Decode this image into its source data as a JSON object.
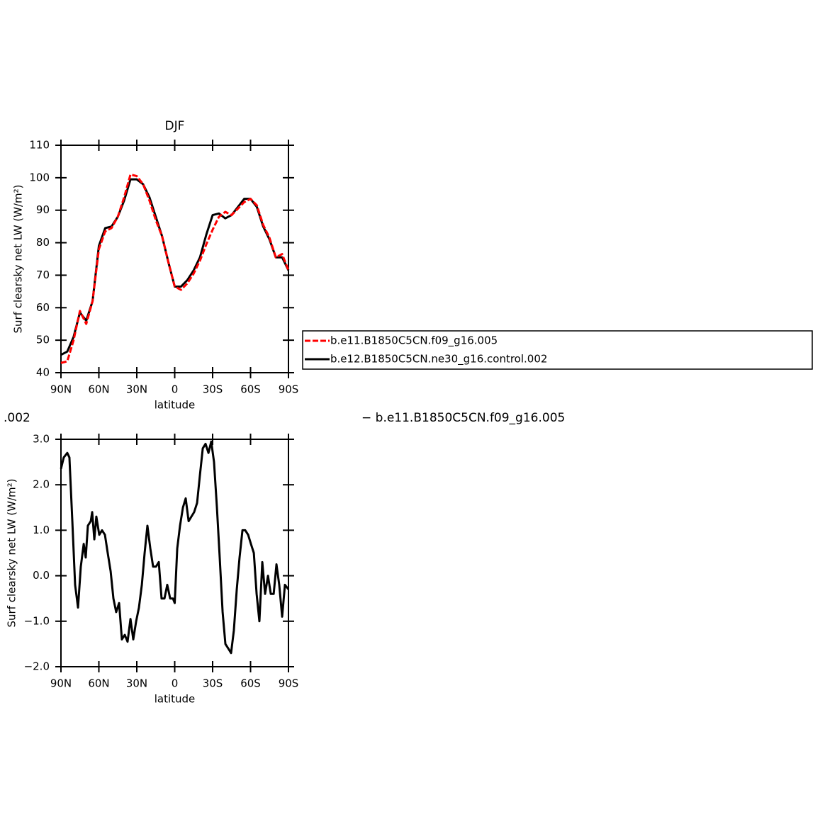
{
  "chart_data": [
    {
      "type": "line",
      "title": "DJF",
      "x_label": "latitude",
      "y_label": "Surf clearsky net LW (W/m²)",
      "x": [
        90,
        85,
        80,
        75,
        70,
        65,
        60,
        55,
        50,
        45,
        40,
        35,
        30,
        25,
        20,
        15,
        10,
        5,
        0,
        -5,
        -10,
        -15,
        -20,
        -25,
        -30,
        -35,
        -40,
        -45,
        -50,
        -55,
        -60,
        -65,
        -70,
        -75,
        -80,
        -85,
        -90
      ],
      "series": [
        {
          "name": "b.e11.B1850C5CN.f09_g16.005",
          "color": "#ff0000",
          "dashed": true,
          "values": [
            43,
            43.5,
            50,
            59,
            55,
            62,
            78,
            83.5,
            84.5,
            88,
            94,
            101,
            100.5,
            98,
            93,
            87,
            82,
            74,
            66.5,
            65.5,
            67.5,
            70.5,
            74.5,
            79.5,
            84,
            88,
            89.5,
            88.5,
            90.5,
            92.5,
            93.5,
            91.5,
            85.5,
            81.5,
            75.5,
            76.5,
            71.5
          ]
        },
        {
          "name": "b.e12.B1850C5CN.ne30_g16.control.002",
          "color": "#000000",
          "dashed": false,
          "values": [
            45.5,
            46.5,
            51,
            58.5,
            56,
            62,
            79,
            84.5,
            85,
            88,
            93,
            99.5,
            99.5,
            98,
            94,
            88,
            82,
            74,
            66.5,
            66.5,
            68.5,
            71.5,
            75.5,
            82.5,
            88.5,
            89,
            87.5,
            88.5,
            91,
            93.5,
            93.5,
            91,
            85,
            81,
            75.5,
            75.5,
            71.5
          ]
        }
      ],
      "xlim": [
        90,
        -90
      ],
      "xticks": [
        {
          "value": 90,
          "label": "90N"
        },
        {
          "value": 60,
          "label": "60N"
        },
        {
          "value": 30,
          "label": "30N"
        },
        0,
        {
          "value": -30,
          "label": "30S"
        },
        {
          "value": -60,
          "label": "60S"
        },
        {
          "value": -90,
          "label": "90S"
        }
      ],
      "ylim": [
        40,
        110
      ],
      "yticks": [
        40,
        50,
        60,
        70,
        80,
        90,
        100,
        110
      ],
      "legend": "right"
    },
    {
      "type": "line",
      "title_fragments": [
        ".002",
        "− b.e11.B1850C5CN.f09_g16.005"
      ],
      "x_label": "latitude",
      "y_label": "Surf clearsky net LW (W/m²)",
      "x": [
        90,
        87.8,
        85,
        83.3,
        81,
        78.8,
        76.5,
        74.3,
        72,
        70.4,
        68.7,
        66.4,
        65.3,
        63.6,
        62,
        59.7,
        57.5,
        55.2,
        53,
        50.7,
        48.5,
        46.3,
        44,
        41.8,
        39.5,
        37.3,
        35,
        32.8,
        30.5,
        28.3,
        26,
        23.8,
        21.6,
        19.3,
        17.1,
        14.8,
        12.6,
        10.4,
        8.1,
        5.9,
        3.6,
        1.4,
        0,
        -2,
        -4.2,
        -6.5,
        -8.7,
        -11,
        -13.2,
        -15.4,
        -17.7,
        -19.9,
        -22.2,
        -24.4,
        -26.7,
        -28.9,
        -31.1,
        -33.4,
        -35.6,
        -37.9,
        -40.1,
        -42.4,
        -44.6,
        -46.8,
        -49.1,
        -51.3,
        -53.6,
        -55.8,
        -58.1,
        -60.3,
        -62.6,
        -64.8,
        -67,
        -69.3,
        -71.5,
        -73.8,
        -76,
        -78.3,
        -80.5,
        -82.7,
        -85,
        -87.2,
        -90
      ],
      "series": [
        {
          "color": "#000000",
          "dashed": false,
          "values": [
            2.35,
            2.6,
            2.7,
            2.6,
            1.2,
            -0.2,
            -0.7,
            0.2,
            0.7,
            0.4,
            1.1,
            1.2,
            1.4,
            0.8,
            1.3,
            0.9,
            1.0,
            0.9,
            0.5,
            0.1,
            -0.5,
            -0.8,
            -0.6,
            -1.4,
            -1.3,
            -1.45,
            -0.95,
            -1.4,
            -1.0,
            -0.7,
            -0.2,
            0.5,
            1.1,
            0.6,
            0.2,
            0.2,
            0.3,
            -0.5,
            -0.5,
            -0.2,
            -0.5,
            -0.5,
            -0.6,
            0.6,
            1.1,
            1.5,
            1.7,
            1.2,
            1.3,
            1.4,
            1.6,
            2.2,
            2.8,
            2.9,
            2.7,
            2.95,
            2.5,
            1.5,
            0.4,
            -0.8,
            -1.5,
            -1.6,
            -1.7,
            -1.2,
            -0.3,
            0.4,
            1.0,
            1.0,
            0.9,
            0.7,
            0.5,
            -0.4,
            -1.0,
            0.3,
            -0.4,
            0.0,
            -0.4,
            -0.4,
            0.25,
            -0.2,
            -0.9,
            -0.2,
            -0.3
          ]
        }
      ],
      "xlim": [
        90,
        -90
      ],
      "xticks": [
        {
          "value": 90,
          "label": "90N"
        },
        {
          "value": 60,
          "label": "60N"
        },
        {
          "value": 30,
          "label": "30N"
        },
        0,
        {
          "value": -30,
          "label": "30S"
        },
        {
          "value": -60,
          "label": "60S"
        },
        {
          "value": -90,
          "label": "90S"
        }
      ],
      "ylim": [
        -2,
        3
      ],
      "yticks": [
        {
          "value": -2,
          "label": "−2.0"
        },
        {
          "value": -1,
          "label": "−1.0"
        },
        {
          "value": 0,
          "label": "0.0"
        },
        {
          "value": 1,
          "label": "1.0"
        },
        {
          "value": 2,
          "label": "2.0"
        },
        {
          "value": 3,
          "label": "3.0"
        }
      ]
    }
  ]
}
